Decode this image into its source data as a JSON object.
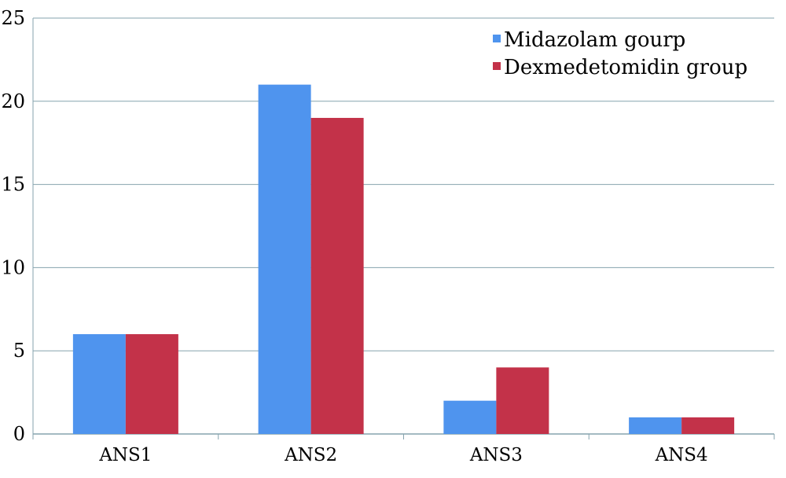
{
  "chart_data": {
    "type": "bar",
    "categories": [
      "ANS1",
      "ANS2",
      "ANS3",
      "ANS4"
    ],
    "series": [
      {
        "name": "Midazolam gourp",
        "values": [
          6,
          21,
          2,
          1
        ],
        "color": "#4F94EE"
      },
      {
        "name": "Dexmedetomidin group",
        "values": [
          6,
          19,
          4,
          1
        ],
        "color": "#C33249"
      }
    ],
    "yticks": [
      "0",
      "5",
      "10",
      "15",
      "20",
      "25"
    ],
    "ylim": [
      0,
      25
    ],
    "grid": true,
    "legend_position": "top-right",
    "title": "",
    "xlabel": "",
    "ylabel": ""
  }
}
